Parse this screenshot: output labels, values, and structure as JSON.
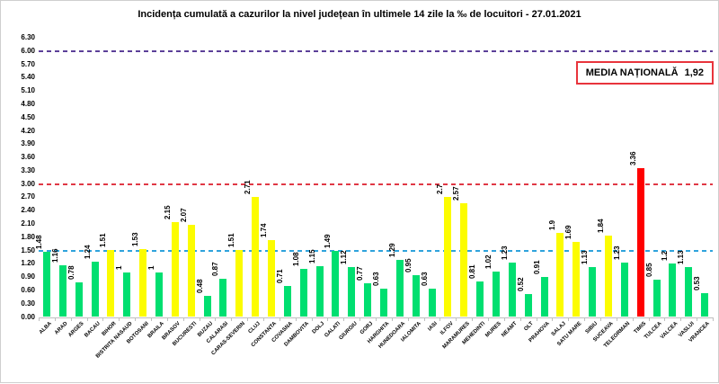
{
  "title": "Incidența cumulată a cazurilor la nivel județean în ultimele 14 zile la ‰ de locuitori - 27.01.2021",
  "annotation": {
    "label": "MEDIA NAȚIONALĂ",
    "value": "1,92",
    "border_color": "#e8343c"
  },
  "chart_data": {
    "type": "bar",
    "title": "Incidența cumulată a cazurilor la nivel județean în ultimele 14 zile la ‰ de locuitori - 27.01.2021",
    "xlabel": "",
    "ylabel": "",
    "ylim": [
      0,
      6.3
    ],
    "ytick_step": 0.3,
    "ytick_labels": [
      "6.30",
      "6.00",
      "5.70",
      "5.40",
      "5.10",
      "4.80",
      "4.50",
      "4.20",
      "3.90",
      "3.60",
      "3.30",
      "3.00",
      "2.70",
      "2.40",
      "2.10",
      "1.80",
      "1.50",
      "1.20",
      "0.90",
      "0.60",
      "0.30",
      "0.00"
    ],
    "grid": false,
    "legend": "none",
    "categories": [
      "ALBA",
      "ARAD",
      "ARGES",
      "BACAU",
      "BIHOR",
      "BISTRITA NASAUD",
      "BOTOSANI",
      "BRAILA",
      "BRASOV",
      "BUCURESTI",
      "BUZAU",
      "CALARASI",
      "CARAS-SEVERIN",
      "CLUJ",
      "CONSTANTA",
      "COVASNA",
      "DAMBOVITA",
      "DOLJ",
      "GALATI",
      "GIURGIU",
      "GORJ",
      "HARGHITA",
      "HUNEDOARA",
      "IALOMITA",
      "IASI",
      "ILFOV",
      "MARAMURES",
      "MEHEDINTI",
      "MURES",
      "NEAMT",
      "OLT",
      "PRAHOVA",
      "SALAJ",
      "SATU MARE",
      "SIBIU",
      "SUCEAVA",
      "TELEORMAN",
      "TIMIS",
      "TULCEA",
      "VALCEA",
      "VASLUI",
      "VRANCEA"
    ],
    "values": [
      1.48,
      1.16,
      0.78,
      1.24,
      1.51,
      1.0,
      1.53,
      1.0,
      2.15,
      2.07,
      0.48,
      0.87,
      1.51,
      2.71,
      1.74,
      0.71,
      1.08,
      1.15,
      1.49,
      1.12,
      0.77,
      0.63,
      1.29,
      0.95,
      0.63,
      2.7,
      2.57,
      0.81,
      1.02,
      1.23,
      0.52,
      0.91,
      1.9,
      1.69,
      1.13,
      1.84,
      1.23,
      3.36,
      0.85,
      1.2,
      1.13,
      0.53
    ],
    "value_labels": [
      "1.48",
      "1.16",
      "0.78",
      "1.24",
      "1.51",
      "1",
      "1.53",
      "1",
      "2.15",
      "2.07",
      "0.48",
      "0.87",
      "1.51",
      "2.71",
      "1.74",
      "0.71",
      "1.08",
      "1.15",
      "1.49",
      "1.12",
      "0.77",
      "0.63",
      "1.29",
      "0.95",
      "0.63",
      "2.7",
      "2.57",
      "0.81",
      "1.02",
      "1.23",
      "0.52",
      "0.91",
      "1.9",
      "1.69",
      "1.13",
      "1.84",
      "1.23",
      "3.36",
      "0.85",
      "1.2",
      "1.13",
      "0.53"
    ],
    "bar_colors": [
      "green",
      "green",
      "green",
      "green",
      "yellow",
      "green",
      "yellow",
      "green",
      "yellow",
      "yellow",
      "green",
      "green",
      "yellow",
      "yellow",
      "yellow",
      "green",
      "green",
      "green",
      "green",
      "green",
      "green",
      "green",
      "green",
      "green",
      "green",
      "yellow",
      "yellow",
      "green",
      "green",
      "green",
      "green",
      "green",
      "yellow",
      "yellow",
      "green",
      "yellow",
      "green",
      "red",
      "green",
      "green",
      "green",
      "green"
    ],
    "colors": {
      "green": "#00df70",
      "yellow": "#fcfc00",
      "red": "#ff0000"
    },
    "reference_lines": [
      {
        "value": 6.0,
        "color": "#5c4099",
        "style": "dashed",
        "name": "purple-line-6.00"
      },
      {
        "value": 3.0,
        "color": "#e03845",
        "style": "dashed",
        "name": "red-line-3.00"
      },
      {
        "value": 1.5,
        "color": "#2fa3dc",
        "style": "dashed",
        "name": "blue-line-1.50"
      }
    ]
  }
}
